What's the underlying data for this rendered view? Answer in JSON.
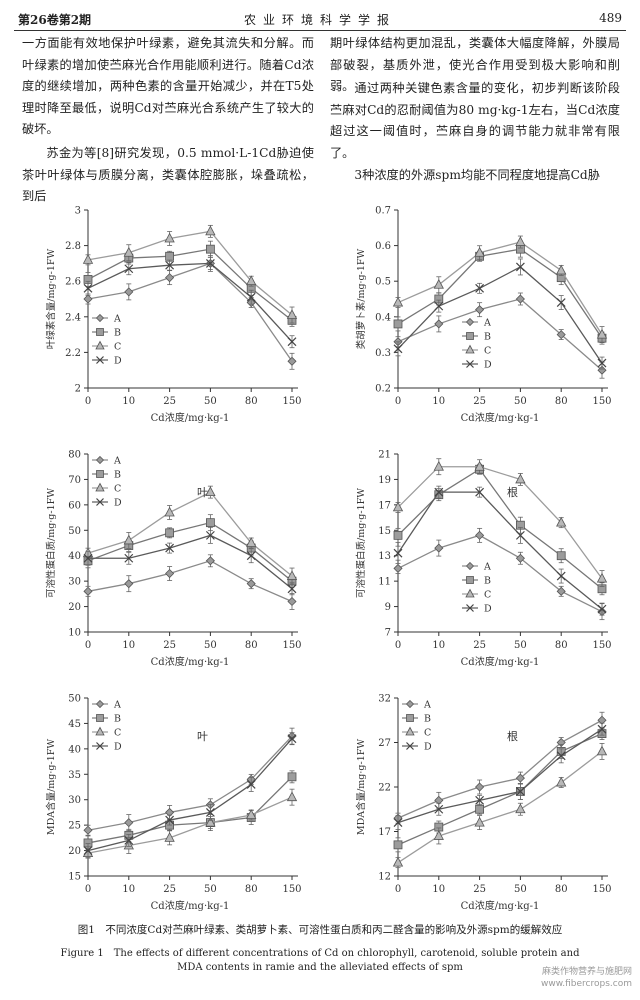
{
  "header": {
    "vol_issue": "第26卷第2期",
    "journal": "农业环境科学学报",
    "page": "489"
  },
  "text": {
    "left_p1": "一方面能有效地保护叶绿素，避免其流失和分解。而叶绿素的增加使苎麻光合作用能顺利进行。随着Cd浓度的继续增加，两种色素的含量开始减少，并在T5处理时降至最低，说明Cd对苎麻光合系统产生了较大的破坏。",
    "left_p2": "苏金为等[8]研究发现，0.5 mmol·L-1Cd胁迫使茶叶叶绿体与质膜分离，类囊体腔膨胀，垛叠疏松，到后",
    "right_p1": "期叶绿体结构更加混乱，类囊体大幅度降解，外膜局部破裂，基质外泄，使光合作用受到极大影响和削弱。",
    "right_p2": "通过两种关键色素含量的变化，初步判断该阶段苎麻对Cd的忍耐阈值为80 mg·kg-1左右，当Cd浓度超过这一阈值时，苎麻自身的调节能力就非常有限了。",
    "right_p3": "3种浓度的外源spm均能不同程度地提高Cd胁"
  },
  "caption": {
    "cn": "图1　不同浓度Cd对苎麻叶绿素、类胡萝卜素、可溶性蛋白质和丙二醛含量的影响及外源spm的缓解效应",
    "en1": "Figure 1　The effects of different concentrations of Cd on chlorophyll, carotenoid, soluble protein and",
    "en2": "MDA contents in ramie and the alleviated effects of spm"
  },
  "watermark": {
    "line1": "麻类作物营养与施肥网",
    "line2": "www.fibercrops.com"
  },
  "chart_data": [
    {
      "type": "line",
      "ylabel": "叶绿素含量/mg·g-1FW",
      "xlabel": "Cd浓度/mg·kg-1",
      "panel_label": "",
      "x": [
        "0",
        "10",
        "25",
        "50",
        "80",
        "150"
      ],
      "ylim": [
        2,
        3
      ],
      "yticks": [
        "2",
        "2.2",
        "2.4",
        "2.6",
        "2.8",
        "3"
      ],
      "legend": "middle-left",
      "series": [
        {
          "name": "A",
          "marker": "diamond",
          "values": [
            2.5,
            2.54,
            2.62,
            2.7,
            2.48,
            2.15
          ]
        },
        {
          "name": "B",
          "marker": "square",
          "values": [
            2.61,
            2.73,
            2.74,
            2.78,
            2.56,
            2.38
          ]
        },
        {
          "name": "C",
          "marker": "triangle",
          "values": [
            2.72,
            2.76,
            2.84,
            2.88,
            2.6,
            2.41
          ]
        },
        {
          "name": "D",
          "marker": "x",
          "values": [
            2.56,
            2.67,
            2.69,
            2.7,
            2.51,
            2.26
          ]
        }
      ]
    },
    {
      "type": "line",
      "ylabel": "类胡萝卜素/mg·g-1FW",
      "xlabel": "Cd浓度/mg·kg-1",
      "panel_label": "",
      "x": [
        "0",
        "10",
        "25",
        "50",
        "80",
        "150"
      ],
      "ylim": [
        0.2,
        0.7
      ],
      "yticks": [
        "0.2",
        "0.3",
        "0.4",
        "0.5",
        "0.6",
        "0.7"
      ],
      "legend": "bottom-center",
      "series": [
        {
          "name": "A",
          "marker": "diamond",
          "values": [
            0.33,
            0.38,
            0.42,
            0.45,
            0.35,
            0.25
          ]
        },
        {
          "name": "B",
          "marker": "square",
          "values": [
            0.38,
            0.45,
            0.57,
            0.59,
            0.51,
            0.34
          ]
        },
        {
          "name": "C",
          "marker": "triangle",
          "values": [
            0.44,
            0.49,
            0.58,
            0.61,
            0.53,
            0.35
          ]
        },
        {
          "name": "D",
          "marker": "x",
          "values": [
            0.31,
            0.43,
            0.48,
            0.54,
            0.44,
            0.27
          ]
        }
      ]
    },
    {
      "type": "line",
      "ylabel": "可溶性蛋白质/mg·g-1FW",
      "xlabel": "Cd浓度/mg·kg-1",
      "panel_label": "叶",
      "x": [
        "0",
        "10",
        "25",
        "50",
        "80",
        "150"
      ],
      "ylim": [
        10,
        80
      ],
      "yticks": [
        "10",
        "20",
        "30",
        "40",
        "50",
        "60",
        "70",
        "80"
      ],
      "legend": "top-left",
      "series": [
        {
          "name": "A",
          "marker": "diamond",
          "values": [
            26,
            29,
            33,
            38,
            29,
            22
          ]
        },
        {
          "name": "B",
          "marker": "square",
          "values": [
            38,
            44,
            49,
            53,
            43,
            30
          ]
        },
        {
          "name": "C",
          "marker": "triangle",
          "values": [
            41,
            46,
            57,
            65,
            45,
            32
          ]
        },
        {
          "name": "D",
          "marker": "x",
          "values": [
            39,
            39,
            43,
            48,
            40,
            27
          ]
        }
      ]
    },
    {
      "type": "line",
      "ylabel": "可溶性蛋白质/mg·g-1FW",
      "xlabel": "Cd浓度/mg·kg-1",
      "panel_label": "根",
      "x": [
        "0",
        "10",
        "25",
        "50",
        "80",
        "150"
      ],
      "ylim": [
        7,
        21
      ],
      "yticks": [
        "7",
        "9",
        "11",
        "13",
        "15",
        "17",
        "19",
        "21"
      ],
      "legend": "bottom-center",
      "series": [
        {
          "name": "A",
          "marker": "diamond",
          "values": [
            12.0,
            13.6,
            14.6,
            12.8,
            10.2,
            8.6
          ]
        },
        {
          "name": "B",
          "marker": "square",
          "values": [
            14.6,
            17.8,
            19.8,
            15.4,
            13.0,
            10.4
          ]
        },
        {
          "name": "C",
          "marker": "triangle",
          "values": [
            16.8,
            20.0,
            20.0,
            19.0,
            15.6,
            11.2
          ]
        },
        {
          "name": "D",
          "marker": "x",
          "values": [
            13.2,
            18.0,
            18.0,
            14.6,
            11.4,
            8.8
          ]
        }
      ]
    },
    {
      "type": "line",
      "ylabel": "MDA含量/mg·g-1FW",
      "xlabel": "Cd浓度/mg·kg-1",
      "panel_label": "叶",
      "x": [
        "0",
        "10",
        "25",
        "50",
        "80",
        "150"
      ],
      "ylim": [
        15,
        50
      ],
      "yticks": [
        "15",
        "20",
        "25",
        "30",
        "35",
        "40",
        "45",
        "50"
      ],
      "legend": "top-left",
      "series": [
        {
          "name": "A",
          "marker": "diamond",
          "values": [
            24.0,
            25.5,
            27.5,
            29.0,
            34.0,
            42.5
          ]
        },
        {
          "name": "B",
          "marker": "square",
          "values": [
            21.5,
            23.0,
            25.0,
            25.5,
            26.5,
            34.5
          ]
        },
        {
          "name": "C",
          "marker": "triangle",
          "values": [
            19.5,
            21.0,
            22.5,
            25.5,
            27.0,
            30.5
          ]
        },
        {
          "name": "D",
          "marker": "x",
          "values": [
            20.0,
            22.0,
            26.0,
            27.5,
            33.0,
            42.0
          ]
        }
      ]
    },
    {
      "type": "line",
      "ylabel": "MDA含量/mg·g-1FW",
      "xlabel": "Cd浓度/mg·kg-1",
      "panel_label": "根",
      "x": [
        "0",
        "10",
        "25",
        "50",
        "80",
        "150"
      ],
      "ylim": [
        12,
        32
      ],
      "yticks": [
        "12",
        "17",
        "22",
        "27",
        "32"
      ],
      "legend": "top-left",
      "series": [
        {
          "name": "A",
          "marker": "diamond",
          "values": [
            18.5,
            20.5,
            22.0,
            23.0,
            27.0,
            29.5
          ]
        },
        {
          "name": "B",
          "marker": "square",
          "values": [
            15.5,
            17.5,
            19.5,
            21.5,
            26.0,
            28.0
          ]
        },
        {
          "name": "C",
          "marker": "triangle",
          "values": [
            13.5,
            16.5,
            18.0,
            19.5,
            22.5,
            26.0
          ]
        },
        {
          "name": "D",
          "marker": "x",
          "values": [
            18.0,
            19.5,
            20.5,
            21.5,
            25.5,
            28.5
          ]
        }
      ]
    }
  ]
}
